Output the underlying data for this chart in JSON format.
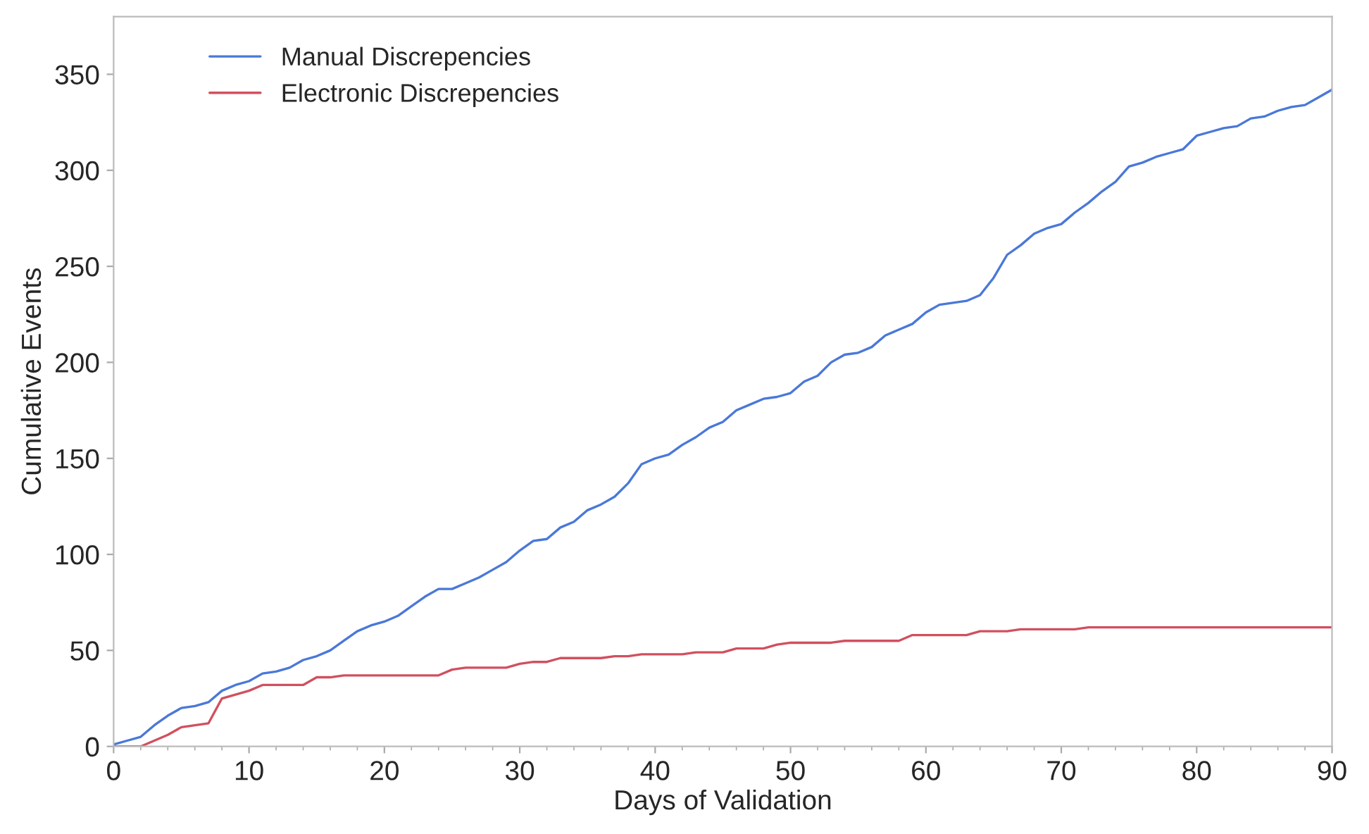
{
  "chart_data": {
    "type": "line",
    "xlabel": "Days of Validation",
    "ylabel": "Cumulative Events",
    "xlim": [
      0,
      90
    ],
    "xticks": [
      0,
      10,
      20,
      30,
      40,
      50,
      60,
      70,
      80,
      90
    ],
    "ylim": [
      0,
      380
    ],
    "yticks": [
      0,
      50,
      100,
      150,
      200,
      250,
      300,
      350
    ],
    "grid": false,
    "legend": "top left",
    "marker": "none",
    "line_style": "solid",
    "series": [
      {
        "name": "Manual Discrepencies",
        "color": "#4a78d8",
        "x": [
          0,
          1,
          2,
          3,
          4,
          5,
          6,
          7,
          8,
          9,
          10,
          11,
          12,
          13,
          14,
          15,
          16,
          17,
          18,
          19,
          20,
          21,
          22,
          23,
          24,
          25,
          26,
          27,
          28,
          29,
          30,
          31,
          32,
          33,
          34,
          35,
          36,
          37,
          38,
          39,
          40,
          41,
          42,
          43,
          44,
          45,
          46,
          47,
          48,
          49,
          50,
          51,
          52,
          53,
          54,
          55,
          56,
          57,
          58,
          59,
          60,
          61,
          62,
          63,
          64,
          65,
          66,
          67,
          68,
          69,
          70,
          71,
          72,
          73,
          74,
          75,
          76,
          77,
          78,
          79,
          80,
          81,
          82,
          83,
          84,
          85,
          86,
          87,
          88,
          89,
          90
        ],
        "values": [
          1,
          3,
          5,
          11,
          16,
          20,
          21,
          23,
          29,
          32,
          34,
          38,
          39,
          41,
          45,
          47,
          50,
          55,
          60,
          63,
          65,
          68,
          73,
          78,
          82,
          82,
          85,
          88,
          92,
          96,
          102,
          107,
          108,
          114,
          117,
          123,
          126,
          130,
          137,
          147,
          150,
          152,
          157,
          161,
          166,
          169,
          175,
          178,
          181,
          182,
          184,
          190,
          193,
          200,
          204,
          205,
          208,
          214,
          217,
          220,
          226,
          230,
          231,
          232,
          235,
          244,
          256,
          261,
          267,
          270,
          272,
          278,
          283,
          289,
          294,
          302,
          304,
          307,
          309,
          311,
          318,
          320,
          322,
          323,
          327,
          328,
          331,
          333,
          334,
          338,
          342
        ]
      },
      {
        "name": "Electronic Discrepencies",
        "color": "#d0505f",
        "x": [
          0,
          1,
          2,
          3,
          4,
          5,
          6,
          7,
          8,
          9,
          10,
          11,
          12,
          13,
          14,
          15,
          16,
          17,
          18,
          19,
          20,
          21,
          22,
          23,
          24,
          25,
          26,
          27,
          28,
          29,
          30,
          31,
          32,
          33,
          34,
          35,
          36,
          37,
          38,
          39,
          40,
          41,
          42,
          43,
          44,
          45,
          46,
          47,
          48,
          49,
          50,
          51,
          52,
          53,
          54,
          55,
          56,
          57,
          58,
          59,
          60,
          61,
          62,
          63,
          64,
          65,
          66,
          67,
          68,
          69,
          70,
          71,
          72,
          73,
          74,
          75,
          76,
          77,
          78,
          79,
          80,
          81,
          82,
          83,
          84,
          85,
          86,
          87,
          88,
          89,
          90
        ],
        "values": [
          0,
          0,
          0,
          3,
          6,
          10,
          11,
          12,
          25,
          27,
          29,
          32,
          32,
          32,
          32,
          36,
          36,
          37,
          37,
          37,
          37,
          37,
          37,
          37,
          37,
          40,
          41,
          41,
          41,
          41,
          43,
          44,
          44,
          46,
          46,
          46,
          46,
          47,
          47,
          48,
          48,
          48,
          48,
          49,
          49,
          49,
          51,
          51,
          51,
          53,
          54,
          54,
          54,
          54,
          55,
          55,
          55,
          55,
          55,
          58,
          58,
          58,
          58,
          58,
          60,
          60,
          60,
          61,
          61,
          61,
          61,
          61,
          62,
          62,
          62,
          62,
          62,
          62,
          62,
          62,
          62,
          62,
          62,
          62,
          62,
          62,
          62,
          62,
          62,
          62,
          62
        ]
      }
    ]
  }
}
